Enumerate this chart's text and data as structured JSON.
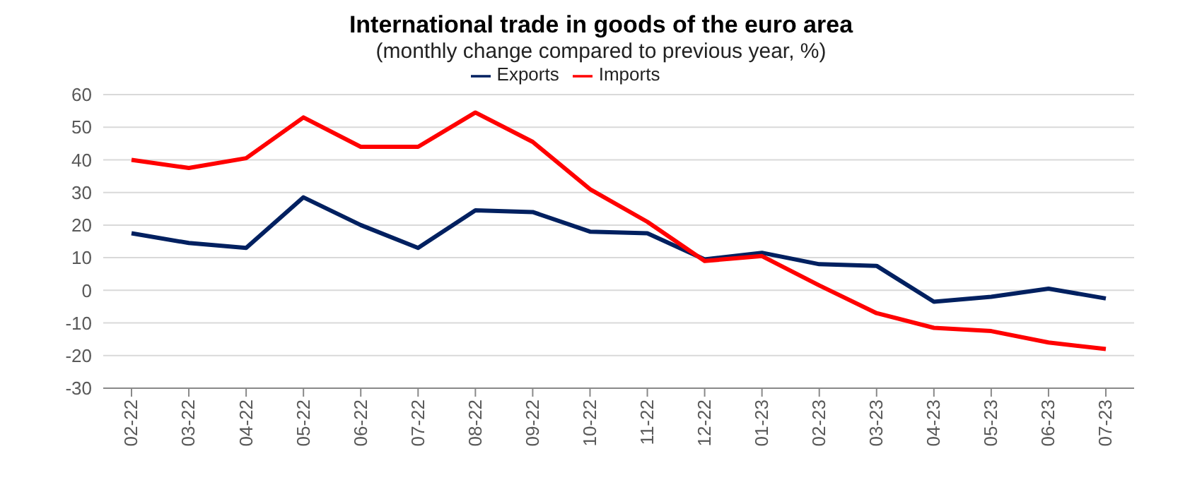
{
  "chart_data": {
    "type": "line",
    "title": "International trade in goods of the euro area",
    "subtitle": "(monthly change compared to previous year, %)",
    "categories": [
      "02-22",
      "03-22",
      "04-22",
      "05-22",
      "06-22",
      "07-22",
      "08-22",
      "09-22",
      "10-22",
      "11-22",
      "12-22",
      "01-23",
      "02-23",
      "03-23",
      "04-23",
      "05-23",
      "06-23",
      "07-23"
    ],
    "series": [
      {
        "name": "Exports",
        "color": "#002060",
        "values": [
          17.5,
          14.5,
          13,
          28.5,
          20,
          13,
          24.5,
          24,
          18,
          17.5,
          9.5,
          11.5,
          8,
          7.5,
          -3.5,
          -2,
          0.5,
          -2.5
        ]
      },
      {
        "name": "Imports",
        "color": "#ff0000",
        "values": [
          40,
          37.5,
          40.5,
          53,
          44,
          44,
          54.5,
          45.5,
          31,
          21,
          9,
          10.5,
          1.5,
          -7,
          -11.5,
          -12.5,
          -16,
          -18
        ]
      }
    ],
    "ylim": [
      -30,
      60
    ],
    "yticks": [
      -30,
      -20,
      -10,
      0,
      10,
      20,
      30,
      40,
      50,
      60
    ],
    "grid": "y",
    "legend": "top",
    "marker": "none",
    "line_style": "solid"
  }
}
